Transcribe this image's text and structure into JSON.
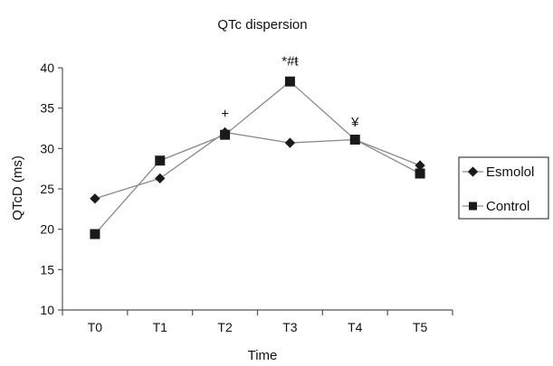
{
  "chart_data": {
    "type": "line",
    "title": "QTc dispersion",
    "xlabel": "Time",
    "ylabel": "QTcD (ms)",
    "categories": [
      "T0",
      "T1",
      "T2",
      "T3",
      "T4",
      "T5"
    ],
    "ylim": [
      10,
      40
    ],
    "yticks": [
      10,
      15,
      20,
      25,
      30,
      35,
      40
    ],
    "grid": false,
    "legend_position": "right",
    "series": [
      {
        "name": "Esmolol",
        "marker": "diamond",
        "values": [
          23.8,
          26.3,
          32.0,
          30.7,
          31.1,
          27.9
        ]
      },
      {
        "name": "Control",
        "marker": "square",
        "values": [
          19.4,
          28.5,
          31.7,
          38.3,
          31.1,
          26.9
        ]
      }
    ],
    "annotations": [
      {
        "text": "+",
        "category": "T2",
        "y": 33.8
      },
      {
        "text": "*#ŧ",
        "category": "T3",
        "y": 40.3
      },
      {
        "text": "¥",
        "category": "T4",
        "y": 32.7
      }
    ]
  },
  "colors": {
    "axis": "#555555",
    "line": "#8a8a8a",
    "marker": "#1a1a1a"
  }
}
